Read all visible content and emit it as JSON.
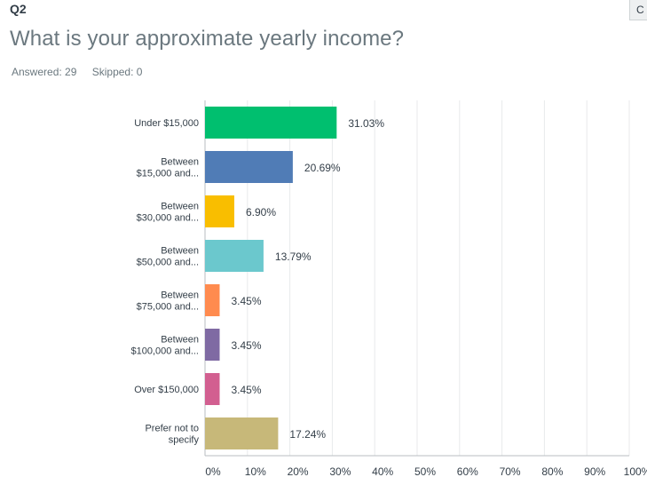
{
  "question": {
    "number": "Q2",
    "title": "What is your approximate yearly income?",
    "answered_label": "Answered: 29",
    "skipped_label": "Skipped: 0"
  },
  "corner_button": {
    "label": "C"
  },
  "chart_data": {
    "type": "bar",
    "orientation": "horizontal",
    "categories": [
      [
        "Under $15,000"
      ],
      [
        "Between",
        "$15,000 and..."
      ],
      [
        "Between",
        "$30,000 and..."
      ],
      [
        "Between",
        "$50,000 and..."
      ],
      [
        "Between",
        "$75,000 and..."
      ],
      [
        "Between",
        "$100,000 and..."
      ],
      [
        "Over $150,000"
      ],
      [
        "Prefer not to",
        "specify"
      ]
    ],
    "values": [
      31.03,
      20.69,
      6.9,
      13.79,
      3.45,
      3.45,
      3.45,
      17.24
    ],
    "value_labels": [
      "31.03%",
      "20.69%",
      "6.90%",
      "13.79%",
      "3.45%",
      "3.45%",
      "3.45%",
      "17.24%"
    ],
    "colors": [
      "#00bf6f",
      "#507cb6",
      "#f9be00",
      "#6bc8cd",
      "#ff8b4f",
      "#7f6aa3",
      "#d25f90",
      "#c7b879"
    ],
    "xlim": [
      0,
      100
    ],
    "xticks": [
      "0%",
      "10%",
      "20%",
      "30%",
      "40%",
      "50%",
      "60%",
      "70%",
      "80%",
      "90%",
      "100%"
    ],
    "grid": true
  }
}
